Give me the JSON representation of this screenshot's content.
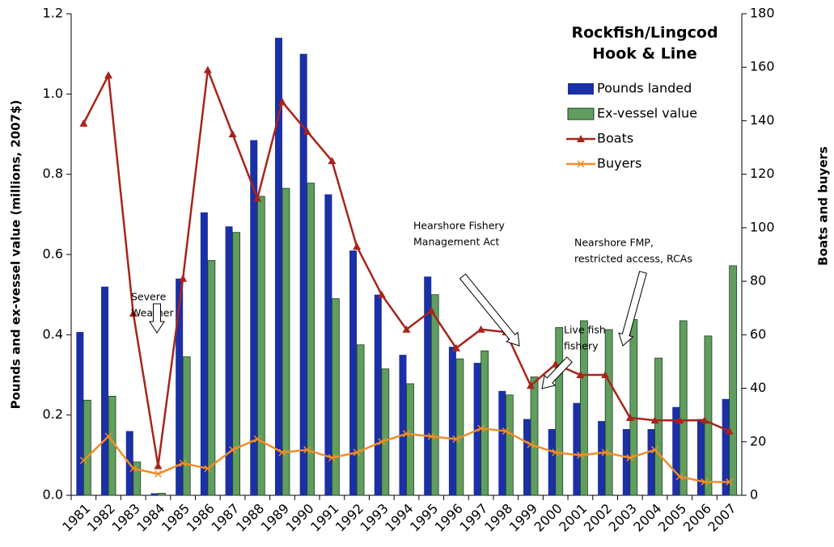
{
  "chart_data": {
    "type": "bar-line",
    "title": [
      "Rockfish/Lingcod",
      "Hook & Line"
    ],
    "y_label": "Pounds and ex-vessel value (millions, 2007$)",
    "y2_label": "Boats and buyers",
    "categories": [
      "1981",
      "1982",
      "1983",
      "1984",
      "1985",
      "1986",
      "1987",
      "1988",
      "1989",
      "1990",
      "1991",
      "1992",
      "1993",
      "1994",
      "1995",
      "1996",
      "1997",
      "1998",
      "1999",
      "2000",
      "2001",
      "2002",
      "2003",
      "2004",
      "2005",
      "2006",
      "2007"
    ],
    "ylim": [
      0,
      1.2
    ],
    "yticks": [
      {
        "value": 0,
        "label": "0.0"
      },
      0.2,
      0.4,
      0.6,
      0.8,
      {
        "value": 1,
        "label": "1.0"
      },
      1.2
    ],
    "y2lim": [
      0,
      180
    ],
    "y2ticks": [
      0,
      20,
      40,
      60,
      80,
      100,
      120,
      140,
      160,
      180
    ],
    "series": [
      {
        "name": "Pounds landed",
        "type": "bar",
        "color": "#1b2fa6",
        "values": [
          0.407,
          0.52,
          0.16,
          0.005,
          0.54,
          0.705,
          0.67,
          0.885,
          1.14,
          1.1,
          0.75,
          0.61,
          0.5,
          0.35,
          0.545,
          0.37,
          0.33,
          0.26,
          0.19,
          0.165,
          0.23,
          0.185,
          0.165,
          0.165,
          0.22,
          0.19,
          0.24
        ]
      },
      {
        "name": "Ex-vessel value",
        "type": "bar",
        "color": "#5f9e5f",
        "values": [
          0.237,
          0.247,
          0.083,
          0.005,
          0.345,
          0.585,
          0.655,
          0.745,
          0.765,
          0.778,
          0.49,
          0.375,
          0.315,
          0.278,
          0.5,
          0.34,
          0.36,
          0.25,
          0.295,
          0.418,
          0.435,
          0.413,
          0.438,
          0.342,
          0.435,
          0.397,
          0.572
        ]
      },
      {
        "name": "Boats",
        "type": "line",
        "marker": "triangle",
        "axis": "y2",
        "color": "#a8241b",
        "values": [
          139,
          157,
          68,
          11,
          81,
          159,
          135,
          111,
          147,
          136,
          125,
          93,
          75,
          62,
          69,
          55,
          62,
          61,
          41,
          49,
          45,
          45,
          29,
          28,
          28,
          28,
          24
        ]
      },
      {
        "name": "Buyers",
        "type": "line",
        "marker": "x",
        "axis": "y2",
        "color": "#f28c28",
        "values": [
          13,
          22,
          10,
          8,
          12,
          10,
          17,
          21,
          16,
          17,
          14,
          16,
          20,
          23,
          22,
          21,
          25,
          24,
          19,
          16,
          15,
          16,
          14,
          17,
          7,
          5,
          5
        ]
      }
    ],
    "annotations": [
      {
        "lines": [
          "Severe",
          "Weather"
        ]
      },
      {
        "lines": [
          "Hearshore Fishery",
          "Management Act"
        ]
      },
      {
        "lines": [
          "Live fish",
          "fishery"
        ]
      },
      {
        "lines": [
          "Nearshore FMP,",
          "restricted access, RCAs"
        ]
      }
    ]
  }
}
